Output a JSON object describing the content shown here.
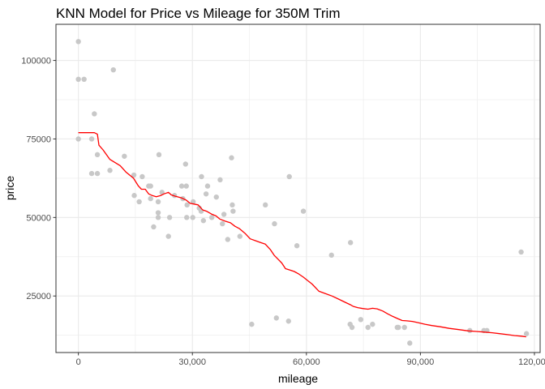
{
  "chart_data": {
    "type": "scatter",
    "title": "KNN Model for Price vs Mileage for 350M Trim",
    "xlabel": "mileage",
    "ylabel": "price",
    "xlim": [
      -5900,
      121500
    ],
    "ylim": [
      7000,
      111500
    ],
    "x_ticks": [
      0,
      30000,
      60000,
      90000,
      120000
    ],
    "x_tick_labels": [
      "0",
      "30,000",
      "60,000",
      "90,000",
      "120,000"
    ],
    "y_ticks": [
      25000,
      50000,
      75000,
      100000
    ],
    "y_tick_labels": [
      "25000",
      "50000",
      "75000",
      "100000"
    ],
    "grid": true,
    "legend": "none",
    "colors": {
      "points": "#c8c8c8",
      "fit_line": "#ff0000",
      "grid": "#ebebeb",
      "border": "#333333"
    },
    "series": [
      {
        "kind": "points",
        "x": [
          0,
          0,
          0,
          1500,
          9200,
          4200,
          3500,
          5000,
          3500,
          5000,
          8300,
          12100,
          14600,
          14700,
          16000,
          16800,
          18500,
          19000,
          19000,
          19800,
          21200,
          21000,
          22000,
          21000,
          21000,
          23700,
          24000,
          25300,
          27200,
          27500,
          28200,
          28400,
          28500,
          28600,
          30200,
          30100,
          31800,
          32300,
          32400,
          32900,
          33600,
          34000,
          35100,
          36300,
          37300,
          37900,
          38300,
          39300,
          40300,
          40500,
          40700,
          42500,
          45600,
          49200,
          51600,
          52100,
          55500,
          55300,
          57500,
          59200,
          66600,
          71600,
          71500,
          72000,
          74300,
          76200,
          77400,
          83900,
          84200,
          85800,
          87200,
          103000,
          106700,
          107500,
          116500,
          117900
        ],
        "y": [
          106000,
          94000,
          75000,
          94000,
          97000,
          83000,
          75000,
          70000,
          64000,
          64000,
          65000,
          69500,
          63500,
          57000,
          55000,
          63000,
          60000,
          56000,
          60000,
          47000,
          70000,
          55000,
          58000,
          51500,
          50000,
          44000,
          50000,
          57000,
          60000,
          56000,
          67000,
          60000,
          50000,
          54000,
          55000,
          50000,
          53000,
          52000,
          63000,
          49000,
          57500,
          60000,
          50000,
          56500,
          62000,
          48000,
          51000,
          43000,
          69000,
          54000,
          52000,
          44000,
          16000,
          54000,
          48000,
          18000,
          63000,
          17000,
          41000,
          52000,
          38000,
          42000,
          16000,
          15000,
          17500,
          15000,
          16000,
          15000,
          15000,
          15000,
          10000,
          14000,
          14000,
          14000,
          39000,
          13000
        ]
      },
      {
        "kind": "line",
        "x": [
          0,
          4200,
          5000,
          5400,
          6500,
          8300,
          11000,
          12500,
          14500,
          15800,
          16600,
          17600,
          18500,
          19400,
          20500,
          21700,
          22500,
          23700,
          24400,
          25400,
          27200,
          28400,
          29400,
          30300,
          31500,
          32700,
          33700,
          35000,
          36200,
          37200,
          38700,
          40000,
          41200,
          42300,
          43800,
          45200,
          46800,
          48000,
          49200,
          50500,
          51500,
          52300,
          53500,
          54500,
          55600,
          56800,
          58000,
          59200,
          61500,
          63300,
          64900,
          66700,
          68500,
          70200,
          71600,
          72300,
          73500,
          74800,
          76200,
          77400,
          78600,
          80100,
          81400,
          82700,
          84000,
          85200,
          86400,
          87900,
          89500,
          91200,
          93000,
          95200,
          97600,
          100100,
          102600,
          104800,
          106900,
          108900,
          110800,
          112900,
          114800,
          116600,
          117800
        ],
        "y": [
          77000,
          77000,
          76500,
          73000,
          71500,
          68500,
          66500,
          64500,
          62500,
          60000,
          59000,
          59000,
          57500,
          57000,
          56600,
          57000,
          57500,
          58000,
          57200,
          56800,
          56200,
          55500,
          54500,
          54300,
          54000,
          52400,
          52000,
          51100,
          50500,
          49500,
          48800,
          48300,
          47200,
          46500,
          45000,
          43200,
          42500,
          42000,
          41500,
          39800,
          38000,
          37000,
          35500,
          33700,
          33300,
          32800,
          32000,
          31000,
          28800,
          26500,
          25800,
          25000,
          24000,
          23000,
          22200,
          21700,
          21300,
          21000,
          20800,
          21100,
          20900,
          20200,
          19300,
          18500,
          17800,
          17200,
          17100,
          16900,
          16500,
          16000,
          15600,
          15200,
          14700,
          14300,
          13900,
          13700,
          13500,
          13300,
          13000,
          12700,
          12400,
          12200,
          12000
        ]
      }
    ]
  }
}
